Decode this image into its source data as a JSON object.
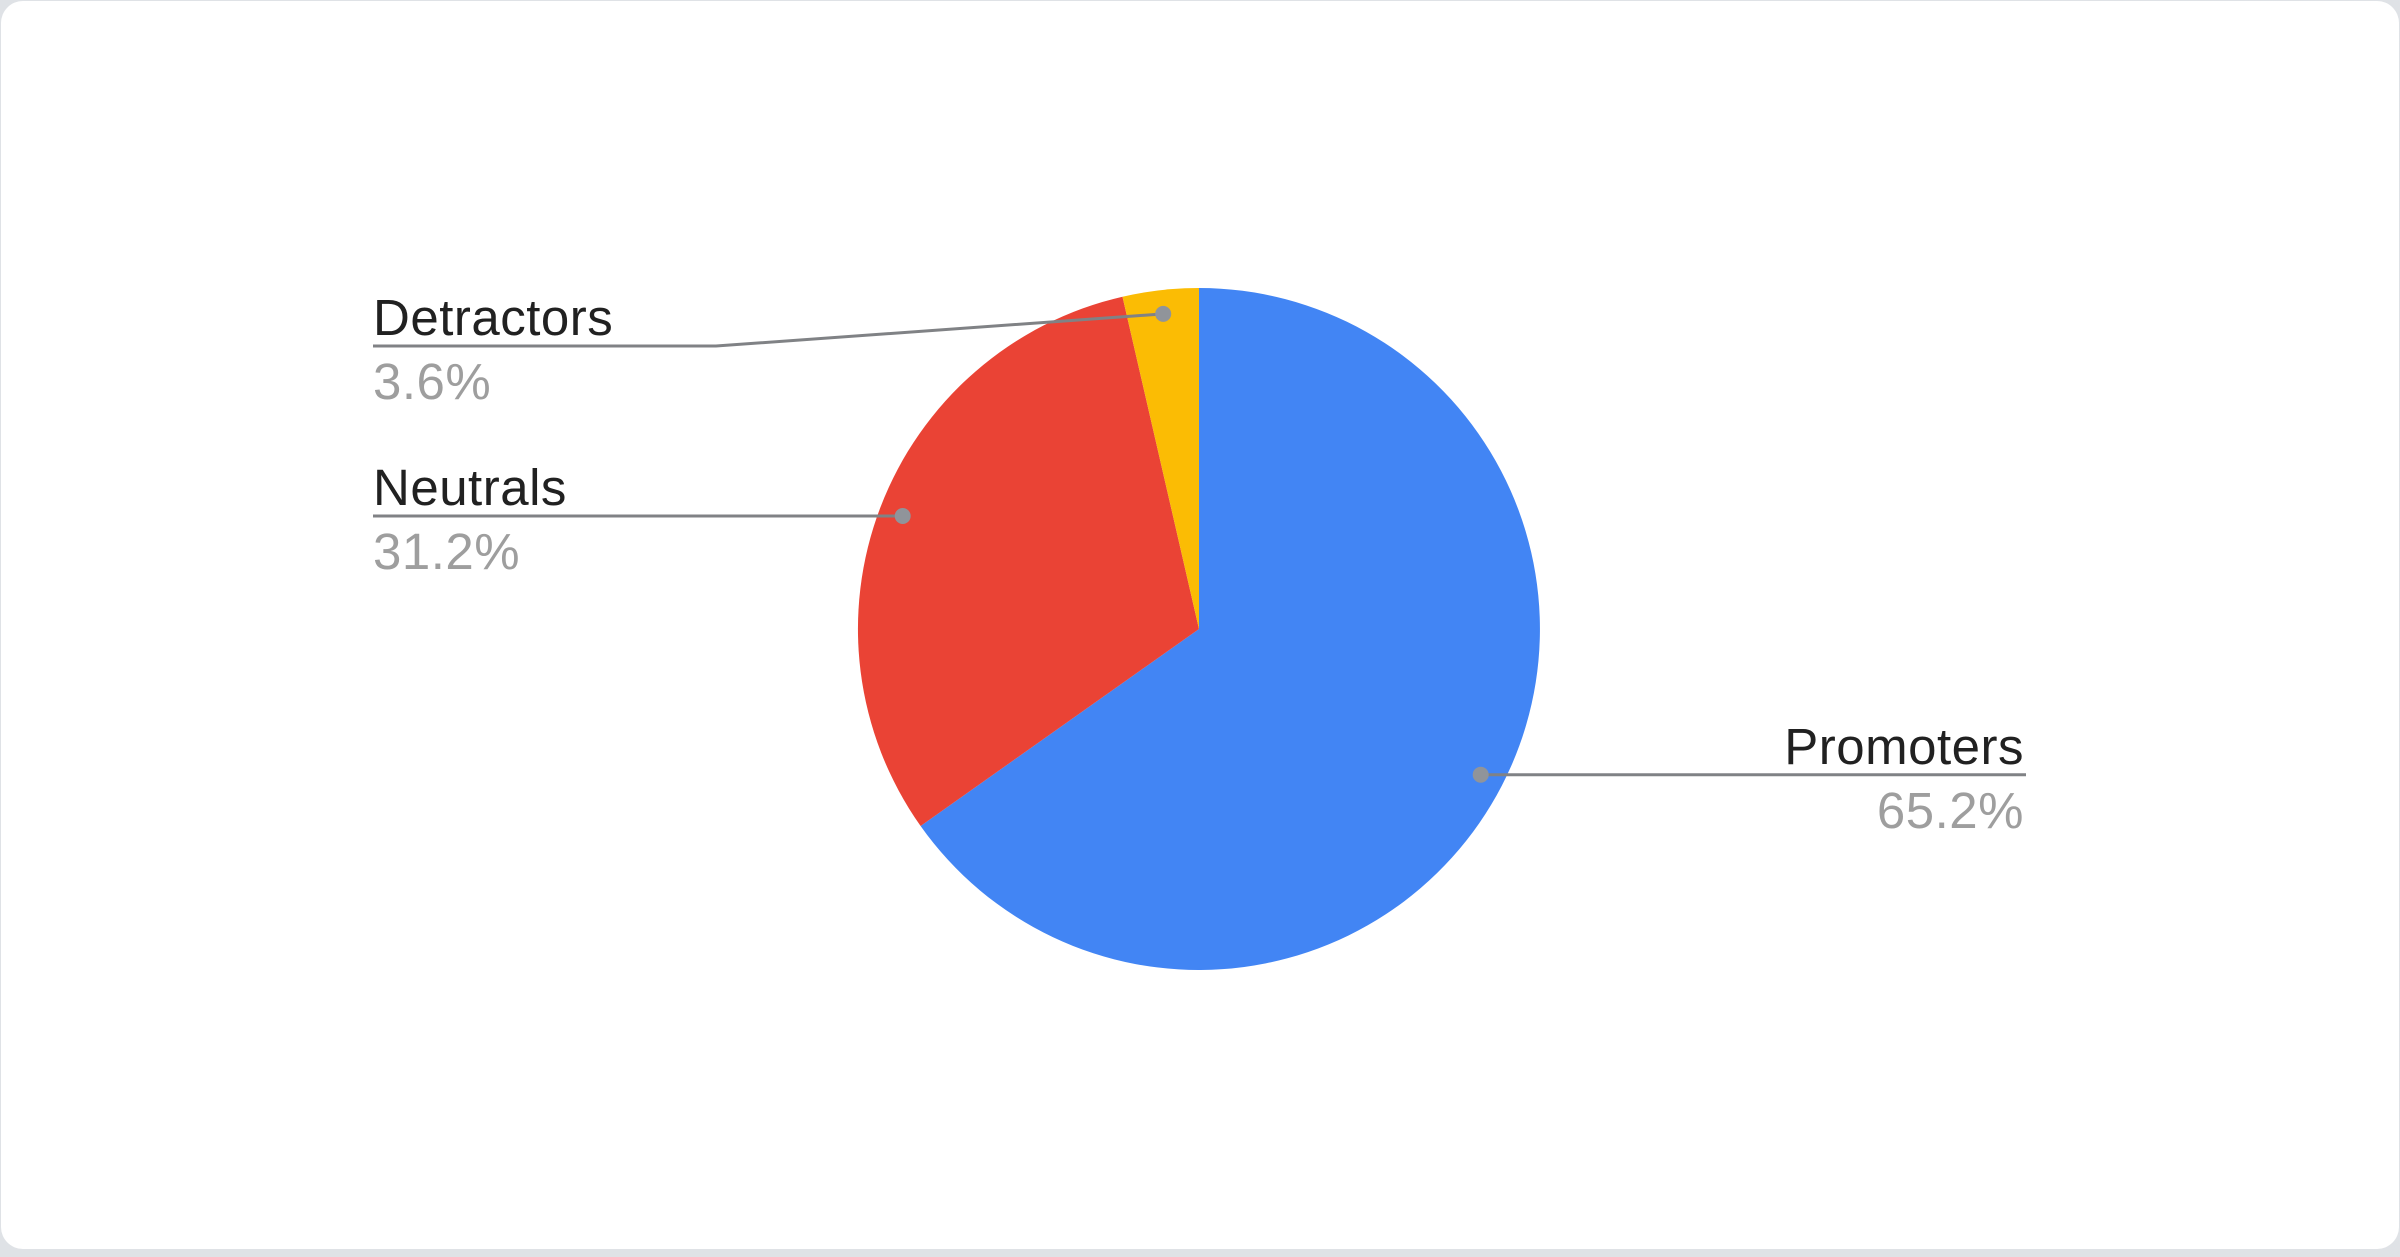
{
  "chart_data": {
    "type": "pie",
    "title": "",
    "direction": "clockwise",
    "start_angle_deg": 0,
    "legend": "callout-labels",
    "slices": [
      {
        "label": "Promoters",
        "value": 65.2,
        "percent_label": "65.2%",
        "color": "#4285F4"
      },
      {
        "label": "Neutrals",
        "value": 31.2,
        "percent_label": "31.2%",
        "color": "#EA4335"
      },
      {
        "label": "Detractors",
        "value": 3.6,
        "percent_label": "3.6%",
        "color": "#FBBC04"
      }
    ],
    "label_text_color": "#212121",
    "percent_text_color": "#9e9e9e",
    "callout_line_color": "#808285",
    "callout_dot_color": "#90949A",
    "card_background": "#ffffff",
    "page_background": "#dfe2e6"
  }
}
